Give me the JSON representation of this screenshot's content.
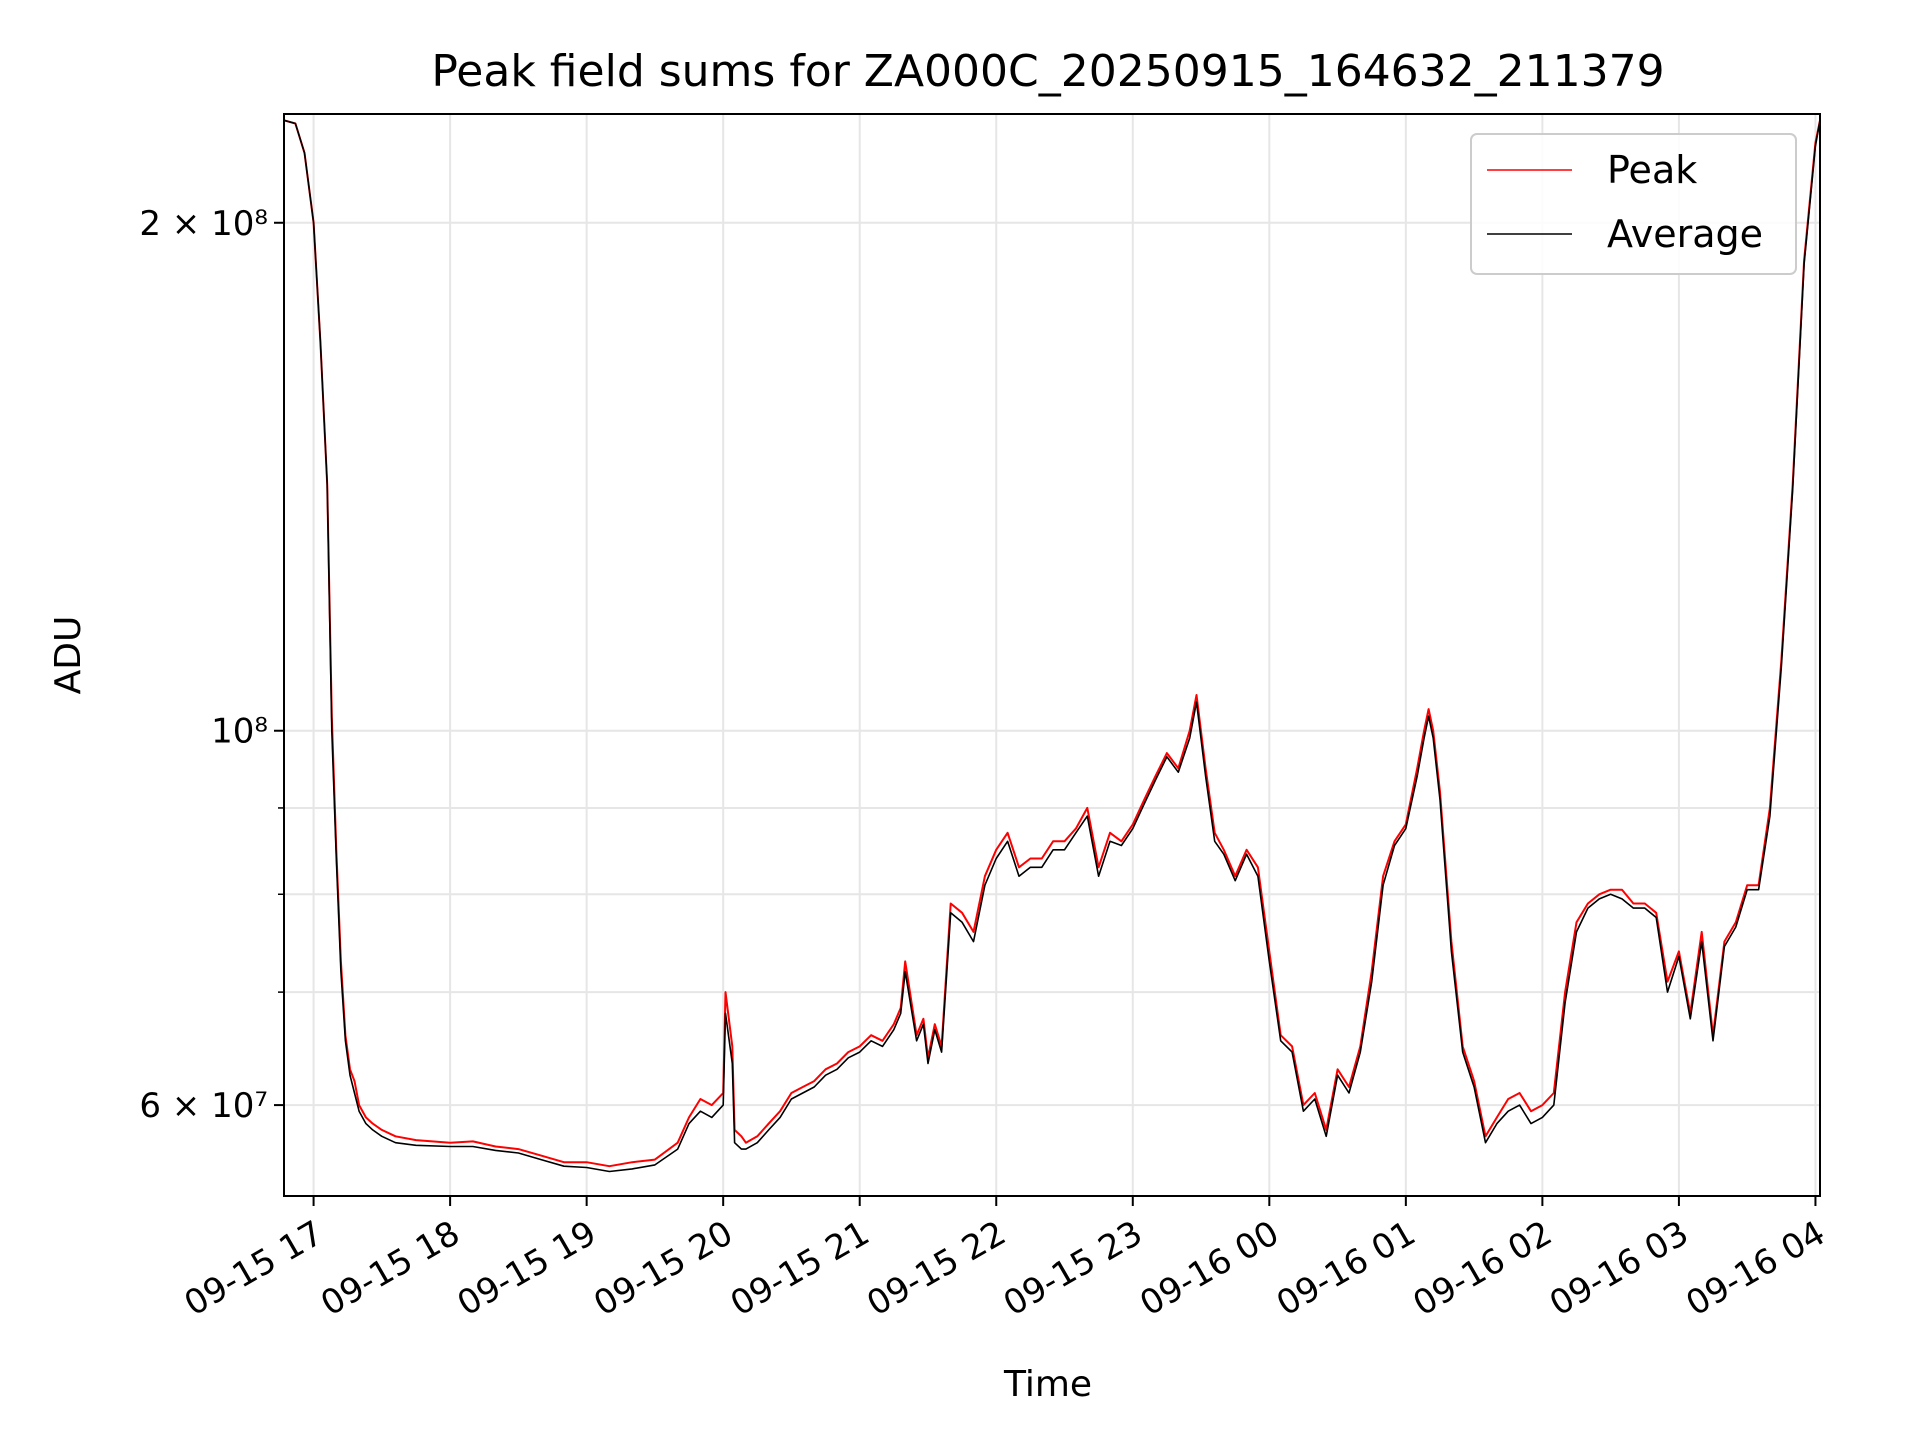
{
  "chart_data": {
    "type": "line",
    "title": "Peak field sums for ZA000C_20250915_164632_211379",
    "xlabel": "Time",
    "ylabel": "ADU",
    "y_scale": "log",
    "ylim": [
      53000000,
      232000000
    ],
    "xlim": [
      "2025-09-15 16:47",
      "2025-09-16 04:02"
    ],
    "grid": true,
    "legend_position": "top-right",
    "x_tick_labels": [
      "09-15 17",
      "09-15 18",
      "09-15 19",
      "09-15 20",
      "09-15 21",
      "09-15 22",
      "09-15 23",
      "09-16 00",
      "09-16 01",
      "09-16 02",
      "09-16 03",
      "09-16 04"
    ],
    "x_ticks": [
      "2025-09-15 17:00",
      "2025-09-15 18:00",
      "2025-09-15 19:00",
      "2025-09-15 20:00",
      "2025-09-15 21:00",
      "2025-09-15 22:00",
      "2025-09-15 23:00",
      "2025-09-16 00:00",
      "2025-09-16 01:00",
      "2025-09-16 02:00",
      "2025-09-16 03:00",
      "2025-09-16 04:00"
    ],
    "y_tick_labels": [
      {
        "value": 200000000,
        "label": "2 × 10⁸"
      },
      {
        "value": 100000000,
        "label": "10⁸"
      },
      {
        "value": 60000000,
        "label": "6 × 10⁷"
      }
    ],
    "y_minor_ticks": [
      70000000,
      80000000,
      90000000
    ],
    "x": [
      "2025-09-15 16:47",
      "2025-09-15 16:52",
      "2025-09-15 16:56",
      "2025-09-15 17:00",
      "2025-09-15 17:03",
      "2025-09-15 17:06",
      "2025-09-15 17:08",
      "2025-09-15 17:10",
      "2025-09-15 17:12",
      "2025-09-15 17:14",
      "2025-09-15 17:16",
      "2025-09-15 17:18",
      "2025-09-15 17:20",
      "2025-09-15 17:23",
      "2025-09-15 17:26",
      "2025-09-15 17:30",
      "2025-09-15 17:36",
      "2025-09-15 17:45",
      "2025-09-15 18:00",
      "2025-09-15 18:10",
      "2025-09-15 18:20",
      "2025-09-15 18:30",
      "2025-09-15 18:40",
      "2025-09-15 18:50",
      "2025-09-15 19:00",
      "2025-09-15 19:10",
      "2025-09-15 19:20",
      "2025-09-15 19:30",
      "2025-09-15 19:40",
      "2025-09-15 19:45",
      "2025-09-15 19:50",
      "2025-09-15 19:55",
      "2025-09-15 20:00",
      "2025-09-15 20:01",
      "2025-09-15 20:04",
      "2025-09-15 20:05",
      "2025-09-15 20:08",
      "2025-09-15 20:10",
      "2025-09-15 20:15",
      "2025-09-15 20:20",
      "2025-09-15 20:25",
      "2025-09-15 20:30",
      "2025-09-15 20:35",
      "2025-09-15 20:40",
      "2025-09-15 20:45",
      "2025-09-15 20:50",
      "2025-09-15 20:55",
      "2025-09-15 21:00",
      "2025-09-15 21:05",
      "2025-09-15 21:10",
      "2025-09-15 21:15",
      "2025-09-15 21:18",
      "2025-09-15 21:20",
      "2025-09-15 21:25",
      "2025-09-15 21:28",
      "2025-09-15 21:30",
      "2025-09-15 21:33",
      "2025-09-15 21:36",
      "2025-09-15 21:40",
      "2025-09-15 21:45",
      "2025-09-15 21:50",
      "2025-09-15 21:55",
      "2025-09-15 22:00",
      "2025-09-15 22:05",
      "2025-09-15 22:10",
      "2025-09-15 22:15",
      "2025-09-15 22:20",
      "2025-09-15 22:25",
      "2025-09-15 22:30",
      "2025-09-15 22:35",
      "2025-09-15 22:40",
      "2025-09-15 22:45",
      "2025-09-15 22:50",
      "2025-09-15 22:55",
      "2025-09-15 23:00",
      "2025-09-15 23:05",
      "2025-09-15 23:10",
      "2025-09-15 23:15",
      "2025-09-15 23:20",
      "2025-09-15 23:25",
      "2025-09-15 23:28",
      "2025-09-15 23:32",
      "2025-09-15 23:36",
      "2025-09-15 23:40",
      "2025-09-15 23:45",
      "2025-09-15 23:50",
      "2025-09-15 23:55",
      "2025-09-16 00:00",
      "2025-09-16 00:05",
      "2025-09-16 00:10",
      "2025-09-16 00:15",
      "2025-09-16 00:20",
      "2025-09-16 00:25",
      "2025-09-16 00:30",
      "2025-09-16 00:35",
      "2025-09-16 00:40",
      "2025-09-16 00:45",
      "2025-09-16 00:50",
      "2025-09-16 00:55",
      "2025-09-16 01:00",
      "2025-09-16 01:05",
      "2025-09-16 01:08",
      "2025-09-16 01:10",
      "2025-09-16 01:12",
      "2025-09-16 01:15",
      "2025-09-16 01:20",
      "2025-09-16 01:25",
      "2025-09-16 01:30",
      "2025-09-16 01:35",
      "2025-09-16 01:40",
      "2025-09-16 01:45",
      "2025-09-16 01:50",
      "2025-09-16 01:55",
      "2025-09-16 02:00",
      "2025-09-16 02:05",
      "2025-09-16 02:10",
      "2025-09-16 02:15",
      "2025-09-16 02:20",
      "2025-09-16 02:25",
      "2025-09-16 02:30",
      "2025-09-16 02:35",
      "2025-09-16 02:40",
      "2025-09-16 02:45",
      "2025-09-16 02:50",
      "2025-09-16 02:55",
      "2025-09-16 03:00",
      "2025-09-16 03:05",
      "2025-09-16 03:10",
      "2025-09-16 03:15",
      "2025-09-16 03:20",
      "2025-09-16 03:25",
      "2025-09-16 03:30",
      "2025-09-16 03:35",
      "2025-09-16 03:40",
      "2025-09-16 03:45",
      "2025-09-16 03:50",
      "2025-09-16 03:55",
      "2025-09-16 04:00",
      "2025-09-16 04:02"
    ],
    "series": [
      {
        "name": "Peak",
        "color": "#ff0000",
        "values": [
          230000000,
          229000000,
          220000000,
          200000000,
          170000000,
          140000000,
          102000000,
          85000000,
          73000000,
          66000000,
          63000000,
          62000000,
          60000000,
          59000000,
          58500000,
          58000000,
          57500000,
          57200000,
          57000000,
          57100000,
          56700000,
          56500000,
          56000000,
          55500000,
          55500000,
          55200000,
          55500000,
          55700000,
          57000000,
          59000000,
          60500000,
          60000000,
          61000000,
          70000000,
          65000000,
          58000000,
          57500000,
          57000000,
          57500000,
          58500000,
          59500000,
          61000000,
          61500000,
          62000000,
          63000000,
          63500000,
          64500000,
          65000000,
          66000000,
          65500000,
          67000000,
          68500000,
          73000000,
          66000000,
          67500000,
          64000000,
          67000000,
          65000000,
          79000000,
          78000000,
          76000000,
          82000000,
          85000000,
          87000000,
          83000000,
          84000000,
          84000000,
          86000000,
          86000000,
          87500000,
          90000000,
          83000000,
          87000000,
          86000000,
          88000000,
          91000000,
          94000000,
          97000000,
          95000000,
          100000000,
          105000000,
          95000000,
          87000000,
          85000000,
          82000000,
          85000000,
          83000000,
          74000000,
          66000000,
          65000000,
          60000000,
          61000000,
          58000000,
          63000000,
          61500000,
          65000000,
          72000000,
          82000000,
          86000000,
          88000000,
          95000000,
          100000000,
          103000000,
          100000000,
          92000000,
          75000000,
          65000000,
          62000000,
          57500000,
          59000000,
          60500000,
          61000000,
          59500000,
          60000000,
          61000000,
          70000000,
          77000000,
          79000000,
          80000000,
          80500000,
          80500000,
          79000000,
          79000000,
          78000000,
          71000000,
          74000000,
          68000000,
          76000000,
          66000000,
          75000000,
          77000000,
          81000000,
          81000000,
          90000000,
          110000000,
          140000000,
          190000000,
          223000000,
          230000000
        ]
      },
      {
        "name": "Average",
        "color": "#000000",
        "values": [
          230000000,
          229000000,
          220000000,
          200000000,
          170000000,
          140000000,
          100000000,
          84000000,
          72000000,
          65500000,
          62500000,
          61000000,
          59500000,
          58500000,
          58000000,
          57500000,
          57000000,
          56800000,
          56700000,
          56700000,
          56400000,
          56200000,
          55700000,
          55200000,
          55100000,
          54800000,
          55000000,
          55300000,
          56500000,
          58500000,
          59500000,
          59000000,
          60000000,
          68000000,
          63500000,
          57000000,
          56500000,
          56500000,
          57000000,
          58000000,
          59000000,
          60500000,
          61000000,
          61500000,
          62500000,
          63000000,
          64000000,
          64500000,
          65500000,
          65000000,
          66500000,
          68000000,
          72000000,
          65500000,
          67000000,
          63500000,
          66500000,
          64500000,
          78000000,
          77000000,
          75000000,
          81000000,
          84000000,
          86000000,
          82000000,
          83000000,
          83000000,
          85000000,
          85000000,
          87000000,
          89000000,
          82000000,
          86000000,
          85500000,
          87500000,
          90500000,
          93500000,
          96500000,
          94500000,
          99000000,
          104000000,
          94000000,
          86000000,
          84500000,
          81500000,
          84500000,
          82000000,
          73000000,
          65500000,
          64500000,
          59500000,
          60500000,
          57500000,
          62500000,
          61000000,
          64500000,
          71000000,
          81000000,
          85500000,
          87500000,
          94000000,
          99000000,
          102000000,
          99000000,
          91000000,
          74000000,
          64500000,
          61500000,
          57000000,
          58500000,
          59500000,
          60000000,
          58500000,
          59000000,
          60000000,
          69000000,
          76000000,
          78500000,
          79500000,
          80000000,
          79500000,
          78500000,
          78500000,
          77500000,
          70000000,
          73500000,
          67500000,
          75000000,
          65500000,
          74500000,
          76500000,
          80500000,
          80500000,
          89000000,
          109000000,
          139000000,
          189000000,
          222000000,
          230000000
        ]
      }
    ]
  }
}
